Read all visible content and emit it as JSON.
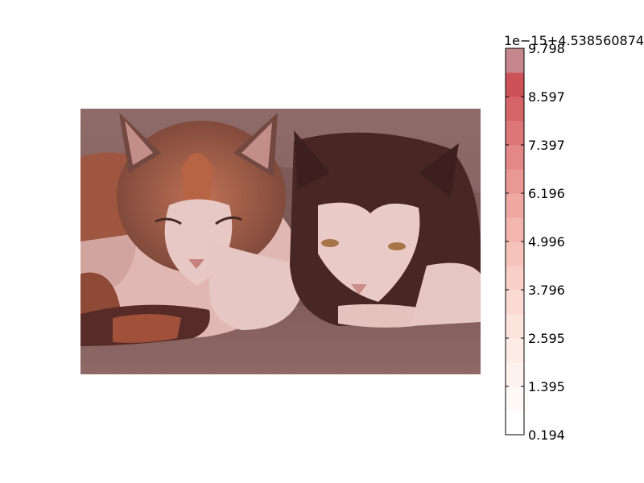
{
  "chart_data": {
    "type": "heatmap",
    "title": "",
    "image": {
      "description_tag": "photo",
      "overlay_color": "#b03a3a"
    },
    "colorbar": {
      "offset_label": "1e−15+4.538560874",
      "ticks": [
        "9.798",
        "8.597",
        "7.397",
        "6.196",
        "4.996",
        "3.796",
        "2.595",
        "1.395",
        "0.194"
      ],
      "range": [
        0.194,
        9.798
      ],
      "levels": 16,
      "colormap": "Reds",
      "colors": [
        "#ffffff",
        "#fef8f6",
        "#fdf2ee",
        "#fdebe5",
        "#fce3dc",
        "#fbdad3",
        "#f9d0c8",
        "#f6c3bb",
        "#f3b6ae",
        "#efa8a1",
        "#e99894",
        "#e38787",
        "#dc7677",
        "#d56467",
        "#cd5257",
        "#c6868e"
      ]
    }
  }
}
